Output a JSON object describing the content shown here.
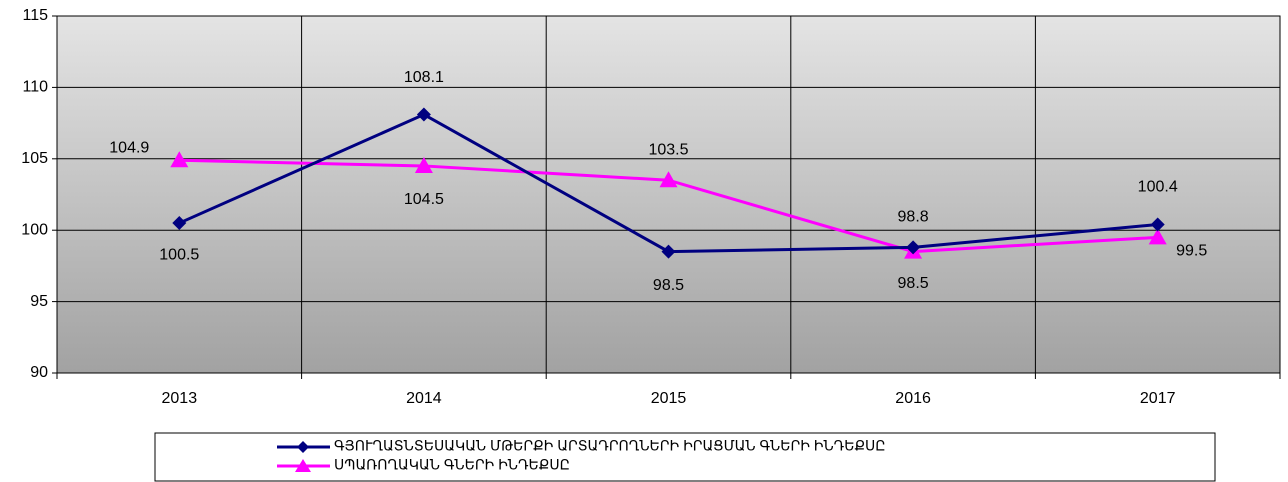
{
  "chart_data": {
    "type": "line",
    "categories": [
      "2013",
      "2014",
      "2015",
      "2016",
      "2017"
    ],
    "series": [
      {
        "name": "ԳՅՈՒՂԱՏՆՏԵՍԱԿԱՆ ՄԹԵՐՔԻ ԱՐՏԱԴՐՈՂՆԵՐԻ ԻՐԱՑՄԱՆ ԳՆԵՐԻ ԻՆԴԵՔՍԸ",
        "color": "#000080",
        "marker": "diamond",
        "values": [
          100.5,
          108.1,
          98.5,
          98.8,
          100.4
        ]
      },
      {
        "name": "ՍՊԱՌՈՂԱԿԱՆ ԳՆԵՐԻ ԻՆԴԵՔՍԸ",
        "color": "#ff00ff",
        "marker": "triangle",
        "values": [
          104.9,
          104.5,
          103.5,
          98.5,
          99.5
        ]
      }
    ],
    "ylim": [
      90,
      115
    ],
    "yticks": [
      90,
      95,
      100,
      105,
      110,
      115
    ],
    "grid": true,
    "legend": "bottom"
  }
}
